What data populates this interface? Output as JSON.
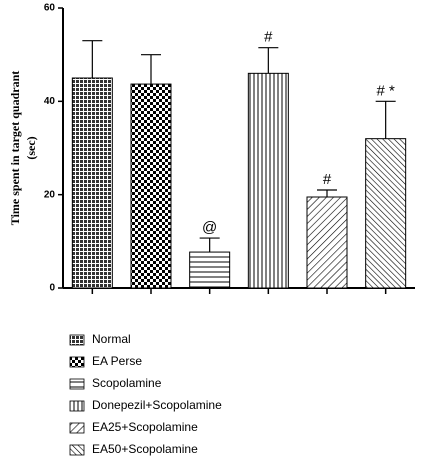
{
  "chart_data": {
    "type": "bar",
    "ylabel": "Time spent in target quadrant",
    "ylabel_unit": "(sec)",
    "categories": [
      "Normal",
      "EA Perse",
      "Scopolamine",
      "Donepezil+Scopolamine",
      "EA25+Scopolamine",
      "EA50+Scopolamine"
    ],
    "values": [
      45,
      43.7,
      7.7,
      46,
      19.5,
      32
    ],
    "errors": [
      8,
      6.3,
      3,
      5.5,
      1.5,
      8
    ],
    "annotations": [
      null,
      null,
      "@",
      "#",
      "#",
      "# *"
    ],
    "patterns": [
      "grid",
      "checker",
      "horizontal",
      "vertical",
      "diag-right",
      "diag-left"
    ],
    "color": "#000000",
    "ylim": [
      0,
      60
    ],
    "yticks": [
      0,
      20,
      40,
      60
    ],
    "grid": false
  }
}
